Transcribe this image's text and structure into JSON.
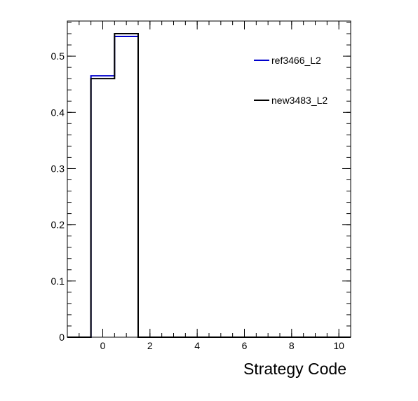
{
  "chart_data": {
    "type": "histogram",
    "xlabel": "Strategy Code",
    "ylabel": "",
    "xlim": [
      -1.5,
      10.5
    ],
    "ylim": [
      0,
      0.5625
    ],
    "xticks": [
      0,
      2,
      4,
      6,
      8,
      10
    ],
    "xtick_labels": [
      "0",
      "2",
      "4",
      "6",
      "8",
      "10"
    ],
    "yticks": [
      0,
      0.1,
      0.2,
      0.3,
      0.4,
      0.5
    ],
    "ytick_labels": [
      "0",
      "0.1",
      "0.2",
      "0.3",
      "0.4",
      "0.5"
    ],
    "bin_edges": [
      -1.5,
      -0.5,
      0.5,
      1.5,
      2.5,
      3.5,
      4.5,
      5.5,
      6.5,
      7.5,
      8.5,
      9.5,
      10.5
    ],
    "series": [
      {
        "name": "ref3466_L2",
        "color": "#0000cc",
        "values": [
          0,
          0.465,
          0.535,
          0,
          0,
          0,
          0,
          0,
          0,
          0,
          0,
          0
        ]
      },
      {
        "name": "new3483_L2",
        "color": "#000000",
        "values": [
          0,
          0.46,
          0.54,
          0,
          0,
          0,
          0,
          0,
          0,
          0,
          0,
          0
        ]
      }
    ],
    "legend_position": "top-right",
    "grid": false
  }
}
